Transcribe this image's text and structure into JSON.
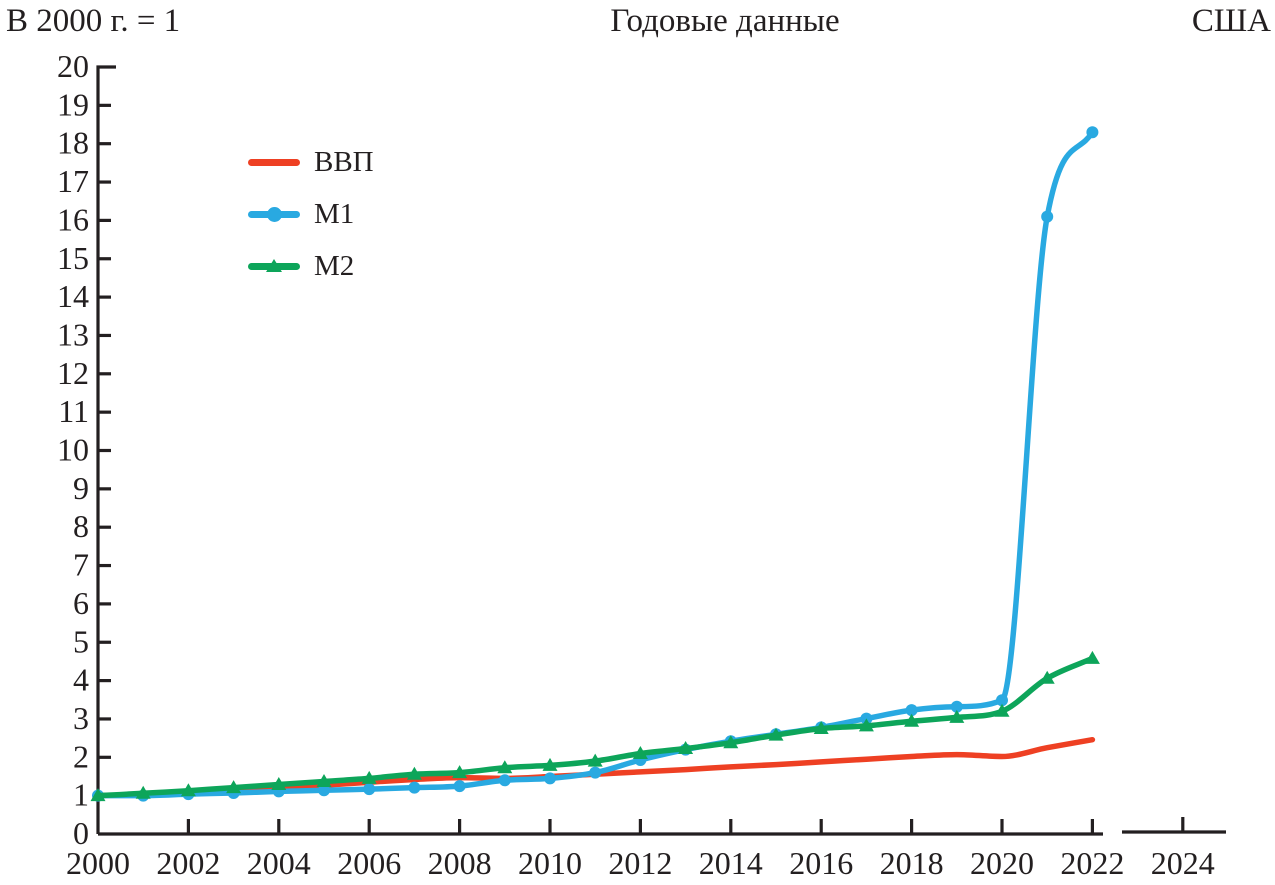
{
  "header": {
    "left_label": "В 2000 г. = 1",
    "center_label": "Годовые данные",
    "right_label": "США"
  },
  "axis_color": "#231f20",
  "text_color": "#231f20",
  "chart_data": {
    "type": "line",
    "title": "Годовые данные",
    "subtitle_left": "В 2000 г. = 1",
    "region_label": "США",
    "xlabel": "",
    "ylabel": "",
    "grid": false,
    "legend_position": "upper-left-inside",
    "xlim": [
      2000,
      2025
    ],
    "ylim": [
      0,
      20
    ],
    "x_ticks": [
      2000,
      2002,
      2004,
      2006,
      2008,
      2010,
      2012,
      2014,
      2016,
      2018,
      2020,
      2022,
      2024
    ],
    "y_ticks": [
      0,
      1,
      2,
      3,
      4,
      5,
      6,
      7,
      8,
      9,
      10,
      11,
      12,
      13,
      14,
      15,
      16,
      17,
      18,
      19,
      20
    ],
    "x": [
      2000,
      2001,
      2002,
      2003,
      2004,
      2005,
      2006,
      2007,
      2008,
      2009,
      2010,
      2011,
      2012,
      2013,
      2014,
      2015,
      2016,
      2017,
      2018,
      2019,
      2020,
      2021,
      2022
    ],
    "series": [
      {
        "name": "ВВП",
        "color": "#ee4023",
        "marker": "none",
        "values": [
          1.0,
          1.03,
          1.07,
          1.12,
          1.19,
          1.27,
          1.35,
          1.42,
          1.47,
          1.45,
          1.5,
          1.56,
          1.62,
          1.68,
          1.75,
          1.81,
          1.88,
          1.95,
          2.02,
          2.07,
          2.02,
          2.25,
          2.46
        ]
      },
      {
        "name": "М1",
        "color": "#29a9e1",
        "marker": "circle",
        "values": [
          1.0,
          1.0,
          1.04,
          1.07,
          1.11,
          1.14,
          1.17,
          1.21,
          1.25,
          1.4,
          1.45,
          1.6,
          1.93,
          2.2,
          2.42,
          2.6,
          2.78,
          3.01,
          3.23,
          3.32,
          3.49,
          16.1,
          18.3
        ]
      },
      {
        "name": "М2",
        "color": "#0da55a",
        "marker": "triangle",
        "values": [
          1.0,
          1.06,
          1.13,
          1.21,
          1.29,
          1.37,
          1.45,
          1.56,
          1.6,
          1.73,
          1.79,
          1.9,
          2.1,
          2.23,
          2.38,
          2.58,
          2.75,
          2.82,
          2.94,
          3.04,
          3.2,
          4.06,
          4.58
        ]
      }
    ]
  }
}
